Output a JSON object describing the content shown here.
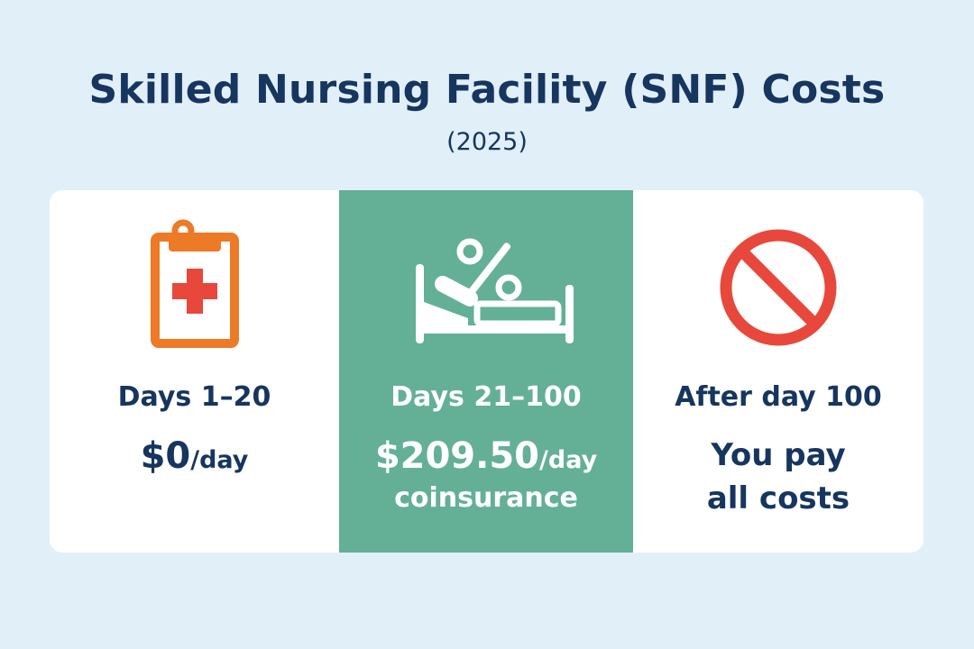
{
  "header": {
    "title": "Skilled Nursing Facility (SNF) Costs",
    "subtitle": "(2025)"
  },
  "panels": [
    {
      "icon": "clipboard-medical-icon",
      "days": "Days 1–20",
      "amount": "$0",
      "unit": "/day"
    },
    {
      "icon": "hospital-bed-percent-icon",
      "days": "Days 21–100",
      "amount": "$209.50",
      "unit": "/day",
      "note": "coinsurance"
    },
    {
      "icon": "prohibited-icon",
      "days": "After day 100",
      "line1": "You pay",
      "line2": "all costs"
    }
  ],
  "colors": {
    "background": "#e1eff8",
    "text": "#16355f",
    "highlight_panel": "#63b096",
    "clipboard": "#ec7a27",
    "cross": "#e8483b",
    "prohibited": "#e8483b"
  }
}
